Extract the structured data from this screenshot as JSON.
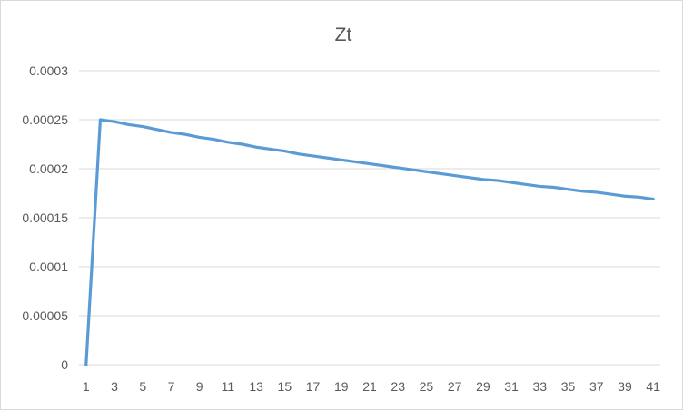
{
  "chart_data": {
    "type": "line",
    "title": "Zt",
    "xlabel": "",
    "ylabel": "",
    "ylim": [
      0,
      0.0003
    ],
    "y_ticks": [
      "0",
      "0.00005",
      "0.0001",
      "0.00015",
      "0.0002",
      "0.00025",
      "0.0003"
    ],
    "y_tick_values": [
      0,
      5e-05,
      0.0001,
      0.00015,
      0.0002,
      0.00025,
      0.0003
    ],
    "x_tick_labels": [
      "1",
      "3",
      "5",
      "7",
      "9",
      "11",
      "13",
      "15",
      "17",
      "19",
      "21",
      "23",
      "25",
      "27",
      "29",
      "31",
      "33",
      "35",
      "37",
      "39",
      "41"
    ],
    "grid": true,
    "legend": "none",
    "x": [
      1,
      2,
      3,
      4,
      5,
      6,
      7,
      8,
      9,
      10,
      11,
      12,
      13,
      14,
      15,
      16,
      17,
      18,
      19,
      20,
      21,
      22,
      23,
      24,
      25,
      26,
      27,
      28,
      29,
      30,
      31,
      32,
      33,
      34,
      35,
      36,
      37,
      38,
      39,
      40,
      41
    ],
    "series": [
      {
        "color": "#5b9bd5",
        "values": [
          0,
          0.00025,
          0.000248,
          0.000245,
          0.000243,
          0.00024,
          0.000237,
          0.000235,
          0.000232,
          0.00023,
          0.000227,
          0.000225,
          0.000222,
          0.00022,
          0.000218,
          0.000215,
          0.000213,
          0.000211,
          0.000209,
          0.000207,
          0.000205,
          0.000203,
          0.000201,
          0.000199,
          0.000197,
          0.000195,
          0.000193,
          0.000191,
          0.000189,
          0.000188,
          0.000186,
          0.000184,
          0.000182,
          0.000181,
          0.000179,
          0.000177,
          0.000176,
          0.000174,
          0.000172,
          0.000171,
          0.000169
        ]
      }
    ]
  }
}
